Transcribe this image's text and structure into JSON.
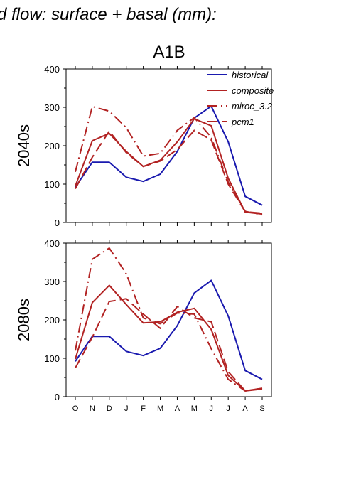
{
  "figure": {
    "title": "d flow: surface + basal (mm):",
    "scenario": "A1B"
  },
  "legend": [
    {
      "name": "historical",
      "color": "#1a1aaf",
      "dash": "solid"
    },
    {
      "name": "composite",
      "color": "#b22222",
      "dash": "solid"
    },
    {
      "name": "miroc_3.2",
      "color": "#b22222",
      "dash": "dashdot"
    },
    {
      "name": "pcm1",
      "color": "#b22222",
      "dash": "dash"
    }
  ],
  "chart_data": [
    {
      "type": "line",
      "panel_label": "2040s",
      "categories": [
        "O",
        "N",
        "D",
        "J",
        "F",
        "M",
        "A",
        "M",
        "J",
        "J",
        "A",
        "S"
      ],
      "ylim": [
        0,
        400
      ],
      "yticks": [
        0,
        100,
        200,
        300,
        400
      ],
      "series": [
        {
          "name": "historical",
          "values": [
            92,
            157,
            157,
            118,
            107,
            126,
            185,
            272,
            303,
            210,
            68,
            45
          ]
        },
        {
          "name": "composite",
          "values": [
            95,
            213,
            232,
            185,
            146,
            162,
            210,
            270,
            252,
            115,
            27,
            22
          ]
        },
        {
          "name": "miroc_3.2",
          "values": [
            132,
            302,
            290,
            247,
            173,
            180,
            240,
            273,
            222,
            105,
            29,
            20
          ]
        },
        {
          "name": "pcm1",
          "values": [
            88,
            170,
            238,
            182,
            146,
            160,
            190,
            240,
            215,
            100,
            28,
            24
          ]
        }
      ]
    },
    {
      "type": "line",
      "panel_label": "2080s",
      "categories": [
        "O",
        "N",
        "D",
        "J",
        "F",
        "M",
        "A",
        "M",
        "J",
        "J",
        "A",
        "S"
      ],
      "ylim": [
        0,
        400
      ],
      "yticks": [
        0,
        100,
        200,
        300,
        400
      ],
      "series": [
        {
          "name": "historical",
          "values": [
            92,
            157,
            157,
            118,
            107,
            126,
            185,
            270,
            303,
            210,
            68,
            45
          ]
        },
        {
          "name": "composite",
          "values": [
            98,
            245,
            290,
            240,
            192,
            195,
            220,
            230,
            175,
            55,
            15,
            20
          ]
        },
        {
          "name": "miroc_3.2",
          "values": [
            120,
            358,
            387,
            320,
            205,
            190,
            218,
            215,
            125,
            45,
            15,
            22
          ]
        },
        {
          "name": "pcm1",
          "values": [
            75,
            155,
            248,
            255,
            215,
            178,
            235,
            205,
            195,
            65,
            15,
            22
          ]
        }
      ]
    }
  ]
}
